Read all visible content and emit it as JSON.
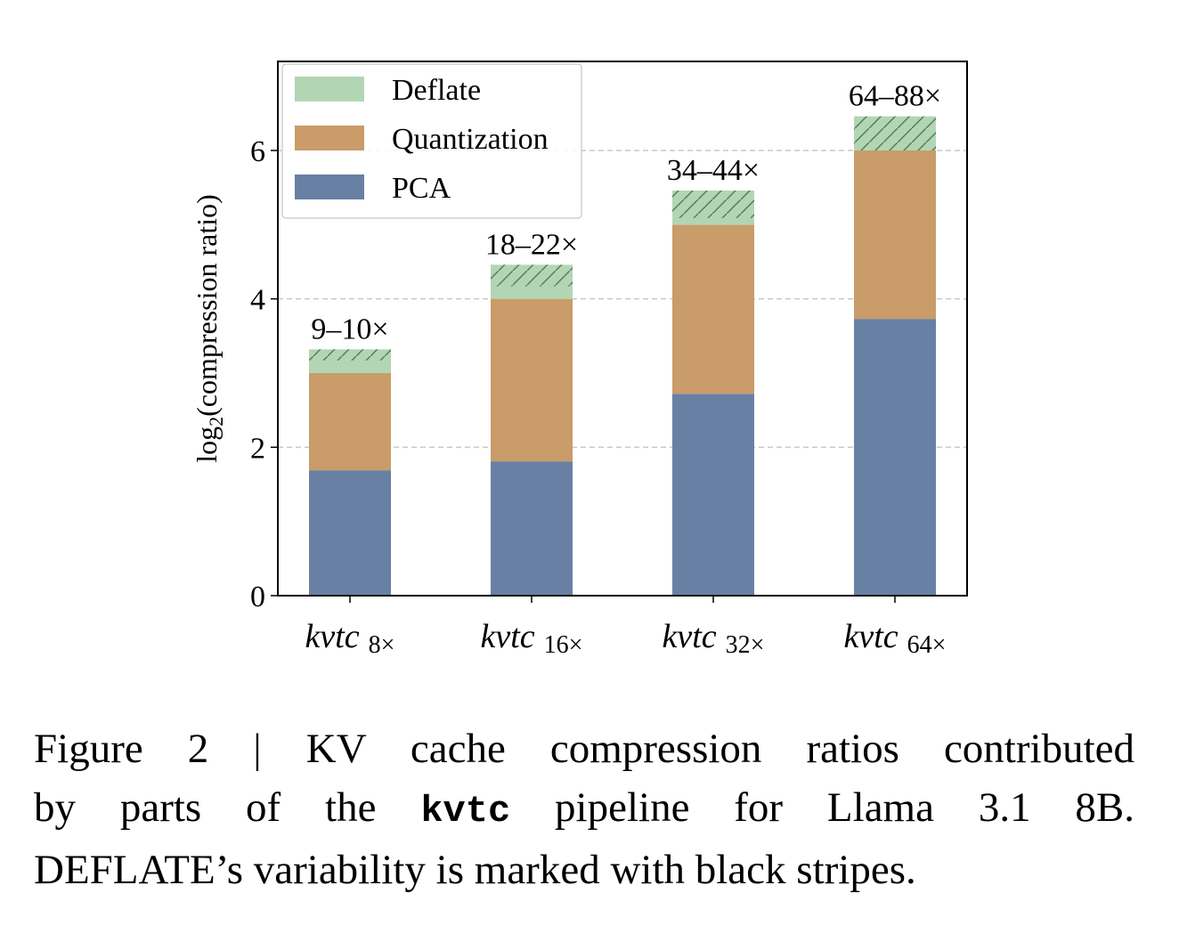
{
  "chart_data": {
    "type": "bar",
    "stacked": true,
    "categories": [
      {
        "name": "kvtc",
        "sub": "8×"
      },
      {
        "name": "kvtc",
        "sub": "16×"
      },
      {
        "name": "kvtc",
        "sub": "32×"
      },
      {
        "name": "kvtc",
        "sub": "64×"
      }
    ],
    "series": [
      {
        "name": "PCA",
        "color": "#6880a3",
        "values": [
          1.69,
          1.81,
          2.72,
          3.73
        ]
      },
      {
        "name": "Quantization",
        "color": "#c99c69",
        "values": [
          1.31,
          2.19,
          2.28,
          2.27
        ]
      },
      {
        "name": "Deflate",
        "color": "#b2d6b3",
        "values_min": [
          0.17,
          0.17,
          0.09,
          0.0
        ],
        "values_max": [
          0.32,
          0.46,
          0.46,
          0.46
        ],
        "variability_hatch": true
      }
    ],
    "bar_labels": [
      "9–10×",
      "18–22×",
      "34–44×",
      "64–88×"
    ],
    "ylabel": "log2(compression ratio)",
    "ylim": [
      0,
      7.2
    ],
    "yticks": [
      0,
      2,
      4,
      6
    ],
    "grid": "y dashed",
    "legend": "top-left",
    "legend_order": [
      "Deflate",
      "Quantization",
      "PCA"
    ]
  },
  "caption": {
    "line1": "Figure 2 | KV cache compression ratios contributed",
    "line2_a": "by parts of the",
    "line2_code": "kvtc",
    "line2_b": "pipeline for Llama 3.1 8B.",
    "line3": "DEFLATE’s variability is marked with black stripes."
  }
}
